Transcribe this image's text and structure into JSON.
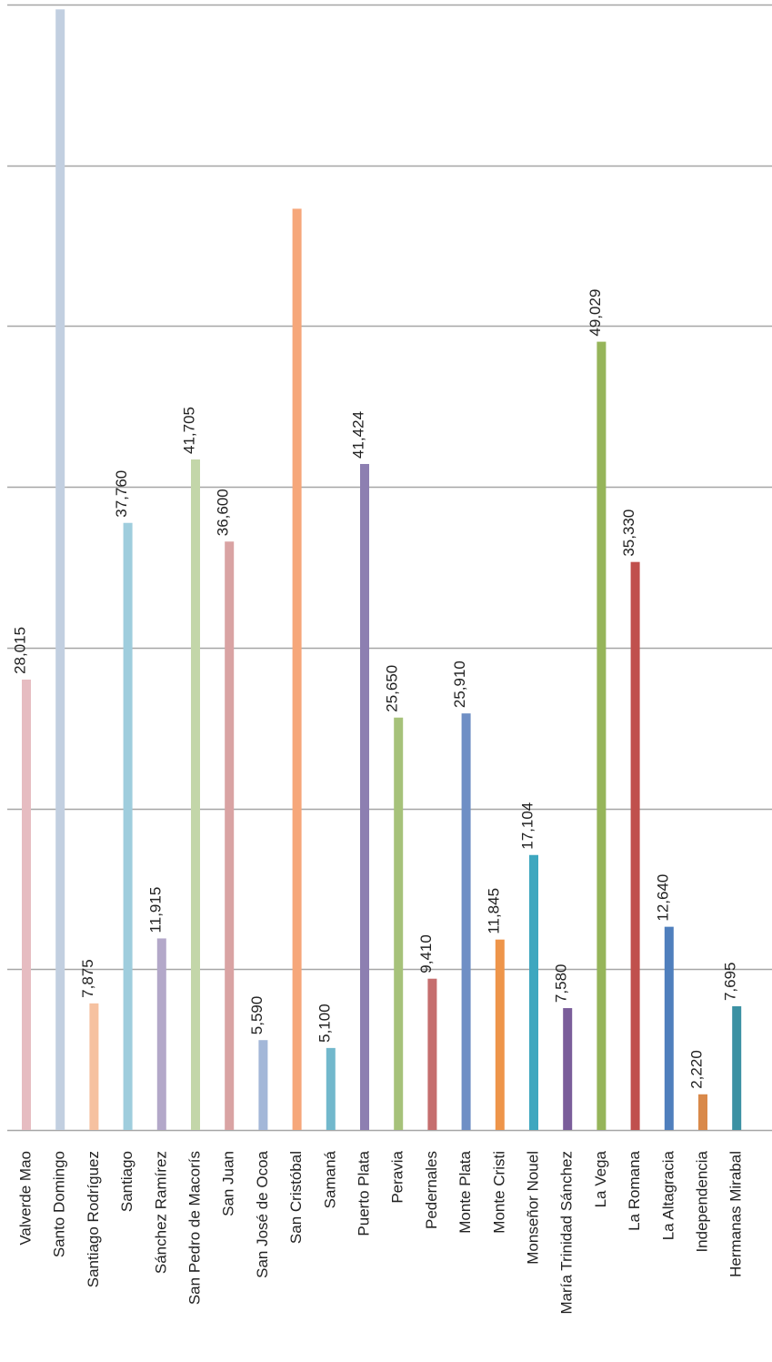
{
  "chart_data": {
    "type": "bar",
    "orientation": "vertical",
    "grid": true,
    "legend": "none",
    "title": "",
    "xlabel": "",
    "ylabel": "",
    "ylim": [
      0,
      70000
    ],
    "categories": [
      "Valverde Mao",
      "Santo Domingo",
      "Santiago Rodríguez",
      "Santiago",
      "Sánchez Ramírez",
      "San Pedro de Macorís",
      "San Juan",
      "San José de Ocoa",
      "San Cristóbal",
      "Samaná",
      "Puerto Plata",
      "Peravia",
      "Pedernales",
      "Monte Plata",
      "Monte Cristi",
      "Monseñor Nouel",
      "María Trinidad Sánchez",
      "La Vega",
      "La Romana",
      "La Altagracia",
      "Independencia",
      "Hermanas Mirabal"
    ],
    "values": [
      28015,
      69700,
      7875,
      37760,
      11915,
      41705,
      36600,
      5590,
      57300,
      5100,
      41424,
      25650,
      9410,
      25910,
      11845,
      17104,
      7580,
      49029,
      35330,
      12640,
      2220,
      7695
    ],
    "data_labels": [
      "28,015",
      "",
      "7,875",
      "37,760",
      "11,915",
      "41,705",
      "36,600",
      "5,590",
      "",
      "5,100",
      "41,424",
      "25,650",
      "9,410",
      "25,910",
      "11,845",
      "17,104",
      "7,580",
      "49,029",
      "35,330",
      "12,640",
      "2,220",
      "7,695"
    ],
    "colors": [
      "#e6bcc1",
      "#c2cfe0",
      "#f6c1a0",
      "#9fcddd",
      "#b3a8c9",
      "#c3d6a9",
      "#d9a3a3",
      "#a3b7d8",
      "#f6a77a",
      "#72b8cc",
      "#8d7fb1",
      "#a6c27a",
      "#c56e6e",
      "#6f8fc5",
      "#ee954a",
      "#3ea7bf",
      "#7a5d9a",
      "#96b55a",
      "#c0504d",
      "#4f7fbd",
      "#d9894a",
      "#3b91a3"
    ]
  }
}
